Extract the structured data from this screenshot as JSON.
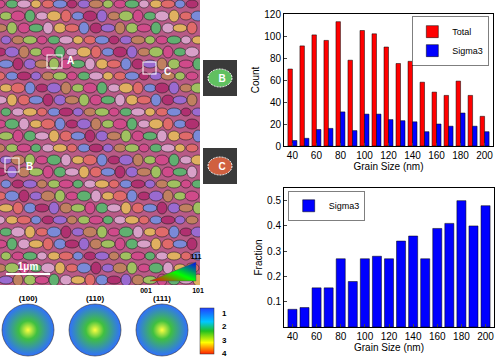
{
  "chart_data": [
    {
      "type": "bar",
      "x": [
        40,
        50,
        60,
        70,
        80,
        90,
        100,
        110,
        120,
        130,
        140,
        150,
        160,
        170,
        180,
        190,
        200
      ],
      "series": [
        {
          "name": "Total",
          "color": "#ff0000",
          "values": [
            70,
            91,
            101,
            96,
            113,
            78,
            105,
            102,
            90,
            75,
            77,
            58,
            49,
            46,
            59,
            46,
            27
          ]
        },
        {
          "name": "Sigma3",
          "color": "#0000ff",
          "values": [
            5,
            7,
            15,
            16,
            31,
            14,
            29,
            29,
            24,
            23,
            22,
            13,
            20,
            18,
            30,
            18,
            13
          ]
        }
      ],
      "xlabel": "Grain Size (nm)",
      "ylabel": "Count",
      "xlim": [
        33,
        207
      ],
      "xticks": [
        40,
        60,
        80,
        100,
        120,
        140,
        160,
        180,
        200
      ],
      "ylim": [
        0,
        120
      ],
      "yticks": [
        0,
        20,
        40,
        60,
        80,
        100,
        120
      ],
      "legend": "upper right"
    },
    {
      "type": "bar",
      "x": [
        40,
        50,
        60,
        70,
        80,
        90,
        100,
        110,
        120,
        130,
        140,
        150,
        160,
        170,
        180,
        190,
        200
      ],
      "series": [
        {
          "name": "Sigma3",
          "color": "#0000ff",
          "values": [
            0.07,
            0.077,
            0.155,
            0.155,
            0.27,
            0.18,
            0.27,
            0.28,
            0.27,
            0.34,
            0.36,
            0.27,
            0.39,
            0.41,
            0.5,
            0.4,
            0.48
          ]
        }
      ],
      "xlabel": "Grain Size (nm)",
      "ylabel": "Fraction",
      "xlim": [
        33,
        207
      ],
      "xticks": [
        40,
        60,
        80,
        100,
        120,
        140,
        160,
        180,
        200
      ],
      "ylim": [
        0,
        0.55
      ],
      "yticks": [
        0.1,
        0.2,
        0.3,
        0.4,
        0.5
      ],
      "legend": "upper left"
    }
  ],
  "micrograph": {
    "region_labels": [
      "A",
      "B",
      "C"
    ],
    "inset_labels": [
      "B",
      "C"
    ],
    "scale_bar": "1μm",
    "ipf_key": [
      "111",
      "001",
      "101"
    ],
    "pole_figures": [
      "(100)",
      "(110)",
      "(111)"
    ],
    "intensity_scale": [
      1,
      2,
      3,
      4
    ]
  }
}
